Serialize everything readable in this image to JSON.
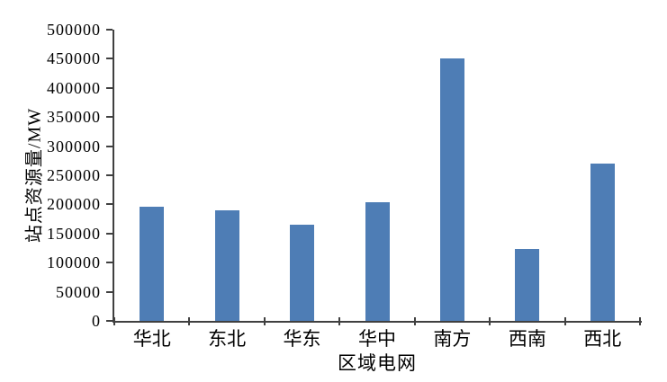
{
  "chart_data": {
    "type": "bar",
    "title": "",
    "xlabel": "区域电网",
    "ylabel": "站点资源量/MW",
    "categories": [
      "华北",
      "东北",
      "华东",
      "华中",
      "南方",
      "西南",
      "西北"
    ],
    "values": [
      196000,
      190000,
      165000,
      203000,
      450000,
      124000,
      270000
    ],
    "ylim": [
      0,
      500000
    ],
    "ytick_step": 50000,
    "ytick_labels": [
      "0",
      "50000",
      "100000",
      "150000",
      "200000",
      "250000",
      "300000",
      "350000",
      "400000",
      "450000",
      "500000"
    ],
    "grid": false,
    "legend_position": "none"
  },
  "style": {
    "bar_color": "#4E7DB5",
    "axis_color": "#404040",
    "text_color": "#000000",
    "background_color": "#ffffff"
  }
}
